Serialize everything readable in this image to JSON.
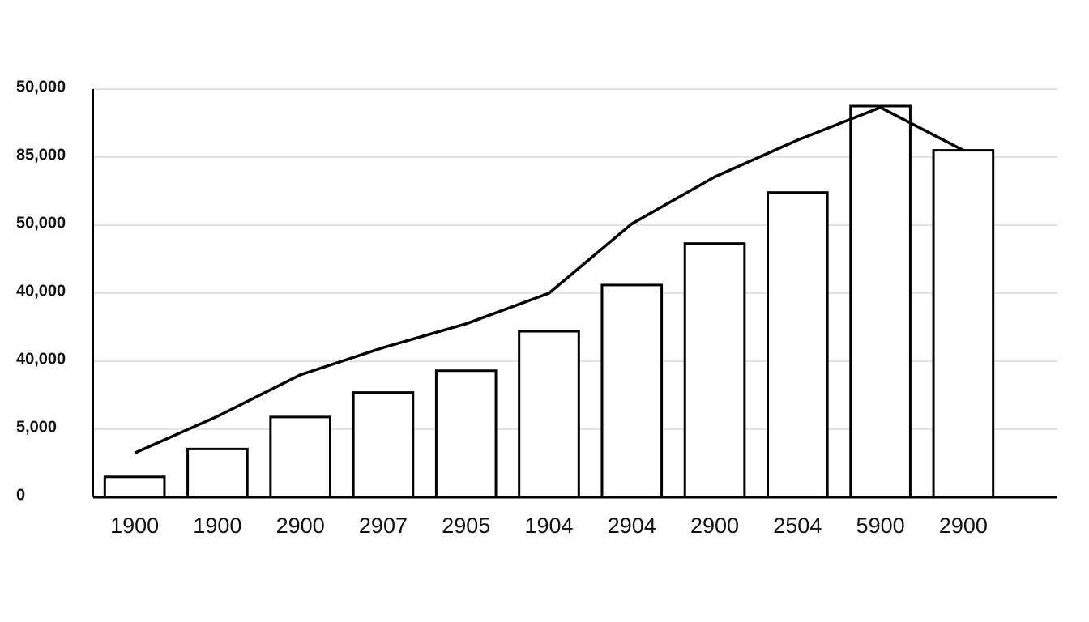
{
  "chart_data": {
    "type": "bar_line",
    "categories": [
      "1900",
      "1900",
      "2900",
      "2907",
      "2905",
      "1904",
      "2904",
      "2900",
      "2504",
      "5900",
      "2900"
    ],
    "series": [
      {
        "type": "bar",
        "color": "#000000",
        "values": [
          0.3,
          0.71,
          1.18,
          1.54,
          1.86,
          2.44,
          3.12,
          3.73,
          4.48,
          5.75,
          5.1
        ]
      },
      {
        "type": "line",
        "color": "#000000",
        "values": [
          0.65,
          1.19,
          1.8,
          2.2,
          2.55,
          3.0,
          4.02,
          4.71,
          5.25,
          5.73,
          5.1
        ]
      }
    ],
    "ylim": [
      0,
      6
    ],
    "yticks": [
      {
        "value": 0,
        "label": "0"
      },
      {
        "value": 1,
        "label": "5,000"
      },
      {
        "value": 2,
        "label": "40,000"
      },
      {
        "value": 3,
        "label": "40,000"
      },
      {
        "value": 4,
        "label": "50,000"
      },
      {
        "value": 5,
        "label": "85,000"
      },
      {
        "value": 6,
        "label": "50,000"
      }
    ],
    "grid": true
  }
}
